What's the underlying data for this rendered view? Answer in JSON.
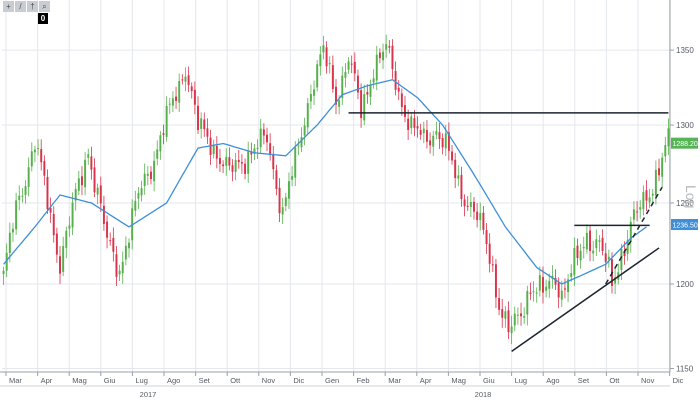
{
  "toolbar": {
    "buttons": [
      {
        "icon": "crosshair-icon",
        "glyph": "+"
      },
      {
        "icon": "trendline-icon",
        "glyph": "/"
      },
      {
        "icon": "fibonacci-icon",
        "glyph": "†"
      },
      {
        "icon": "zoom-icon",
        "glyph": "⌕"
      }
    ],
    "badge": "0"
  },
  "chart_data": {
    "type": "candlestick",
    "y_scale": "log",
    "ylim": [
      1148,
      1372
    ],
    "y_ticks": [
      1150,
      1200,
      1250,
      1300,
      1350
    ],
    "y_axis_label": "Log",
    "x_ticks": [
      "Mar",
      "Apr",
      "Mag",
      "Giu",
      "Lug",
      "Ago",
      "Set",
      "Ott",
      "Nov",
      "Dic",
      "Gen",
      "Feb",
      "Mar",
      "Apr",
      "Mag",
      "Giu",
      "Lug",
      "Ago",
      "Set",
      "Ott",
      "Nov",
      "Dic"
    ],
    "year_labels": [
      "2017",
      "2018"
    ],
    "price_anchors": [
      [
        0,
        1205
      ],
      [
        4,
        1245
      ],
      [
        10,
        1290
      ],
      [
        15,
        1240
      ],
      [
        18,
        1215
      ],
      [
        24,
        1260
      ],
      [
        27,
        1285
      ],
      [
        33,
        1225
      ],
      [
        37,
        1210
      ],
      [
        44,
        1260
      ],
      [
        49,
        1285
      ],
      [
        54,
        1315
      ],
      [
        58,
        1340
      ],
      [
        62,
        1298
      ],
      [
        66,
        1290
      ],
      [
        72,
        1268
      ],
      [
        78,
        1282
      ],
      [
        84,
        1290
      ],
      [
        89,
        1245
      ],
      [
        93,
        1275
      ],
      [
        98,
        1325
      ],
      [
        102,
        1348
      ],
      [
        106,
        1318
      ],
      [
        110,
        1345
      ],
      [
        114,
        1308
      ],
      [
        118,
        1340
      ],
      [
        122,
        1350
      ],
      [
        126,
        1322
      ],
      [
        130,
        1298
      ],
      [
        134,
        1290
      ],
      [
        138,
        1298
      ],
      [
        141,
        1285
      ],
      [
        145,
        1262
      ],
      [
        150,
        1245
      ],
      [
        155,
        1218
      ],
      [
        158,
        1190
      ],
      [
        161,
        1170
      ],
      [
        164,
        1178
      ],
      [
        168,
        1200
      ],
      [
        172,
        1193
      ],
      [
        176,
        1206
      ],
      [
        178,
        1195
      ],
      [
        182,
        1210
      ],
      [
        186,
        1230
      ],
      [
        190,
        1224
      ],
      [
        194,
        1200
      ],
      [
        197,
        1220
      ],
      [
        200,
        1235
      ],
      [
        204,
        1250
      ],
      [
        208,
        1268
      ],
      [
        212,
        1288
      ]
    ],
    "moving_average": [
      [
        0,
        1212
      ],
      [
        10,
        1235
      ],
      [
        18,
        1255
      ],
      [
        28,
        1250
      ],
      [
        40,
        1235
      ],
      [
        52,
        1250
      ],
      [
        62,
        1285
      ],
      [
        70,
        1288
      ],
      [
        80,
        1282
      ],
      [
        90,
        1280
      ],
      [
        100,
        1300
      ],
      [
        108,
        1320
      ],
      [
        116,
        1326
      ],
      [
        124,
        1330
      ],
      [
        132,
        1318
      ],
      [
        140,
        1300
      ],
      [
        150,
        1268
      ],
      [
        160,
        1235
      ],
      [
        170,
        1210
      ],
      [
        178,
        1200
      ],
      [
        184,
        1205
      ],
      [
        192,
        1212
      ],
      [
        200,
        1228
      ],
      [
        205,
        1235
      ]
    ],
    "lines": [
      {
        "name": "horizontal-resistance-line",
        "style": "solid",
        "points": [
          [
            110,
            1308
          ],
          [
            212,
            1308
          ]
        ]
      },
      {
        "name": "horizontal-level-line",
        "style": "solid",
        "points": [
          [
            182,
            1236
          ],
          [
            206,
            1236
          ]
        ]
      },
      {
        "name": "support-trendline",
        "style": "solid",
        "points": [
          [
            162,
            1160
          ],
          [
            209,
            1222
          ]
        ]
      },
      {
        "name": "rising-trendline-dashed",
        "style": "dashed",
        "points": [
          [
            192,
            1200
          ],
          [
            210,
            1260
          ]
        ]
      }
    ],
    "price_tags": [
      {
        "label": "1288.2000",
        "value": 1288.2,
        "fill": "#56b356"
      },
      {
        "label": "1236.5000",
        "value": 1236.5,
        "fill": "#3f8fd8"
      }
    ],
    "colors": {
      "up": "#55b04a",
      "down": "#d9324a",
      "moving_average": "#3f8fd8",
      "lines": "#1c2430",
      "grid": "#e4e7ec",
      "axis_text": "#555b63"
    }
  }
}
